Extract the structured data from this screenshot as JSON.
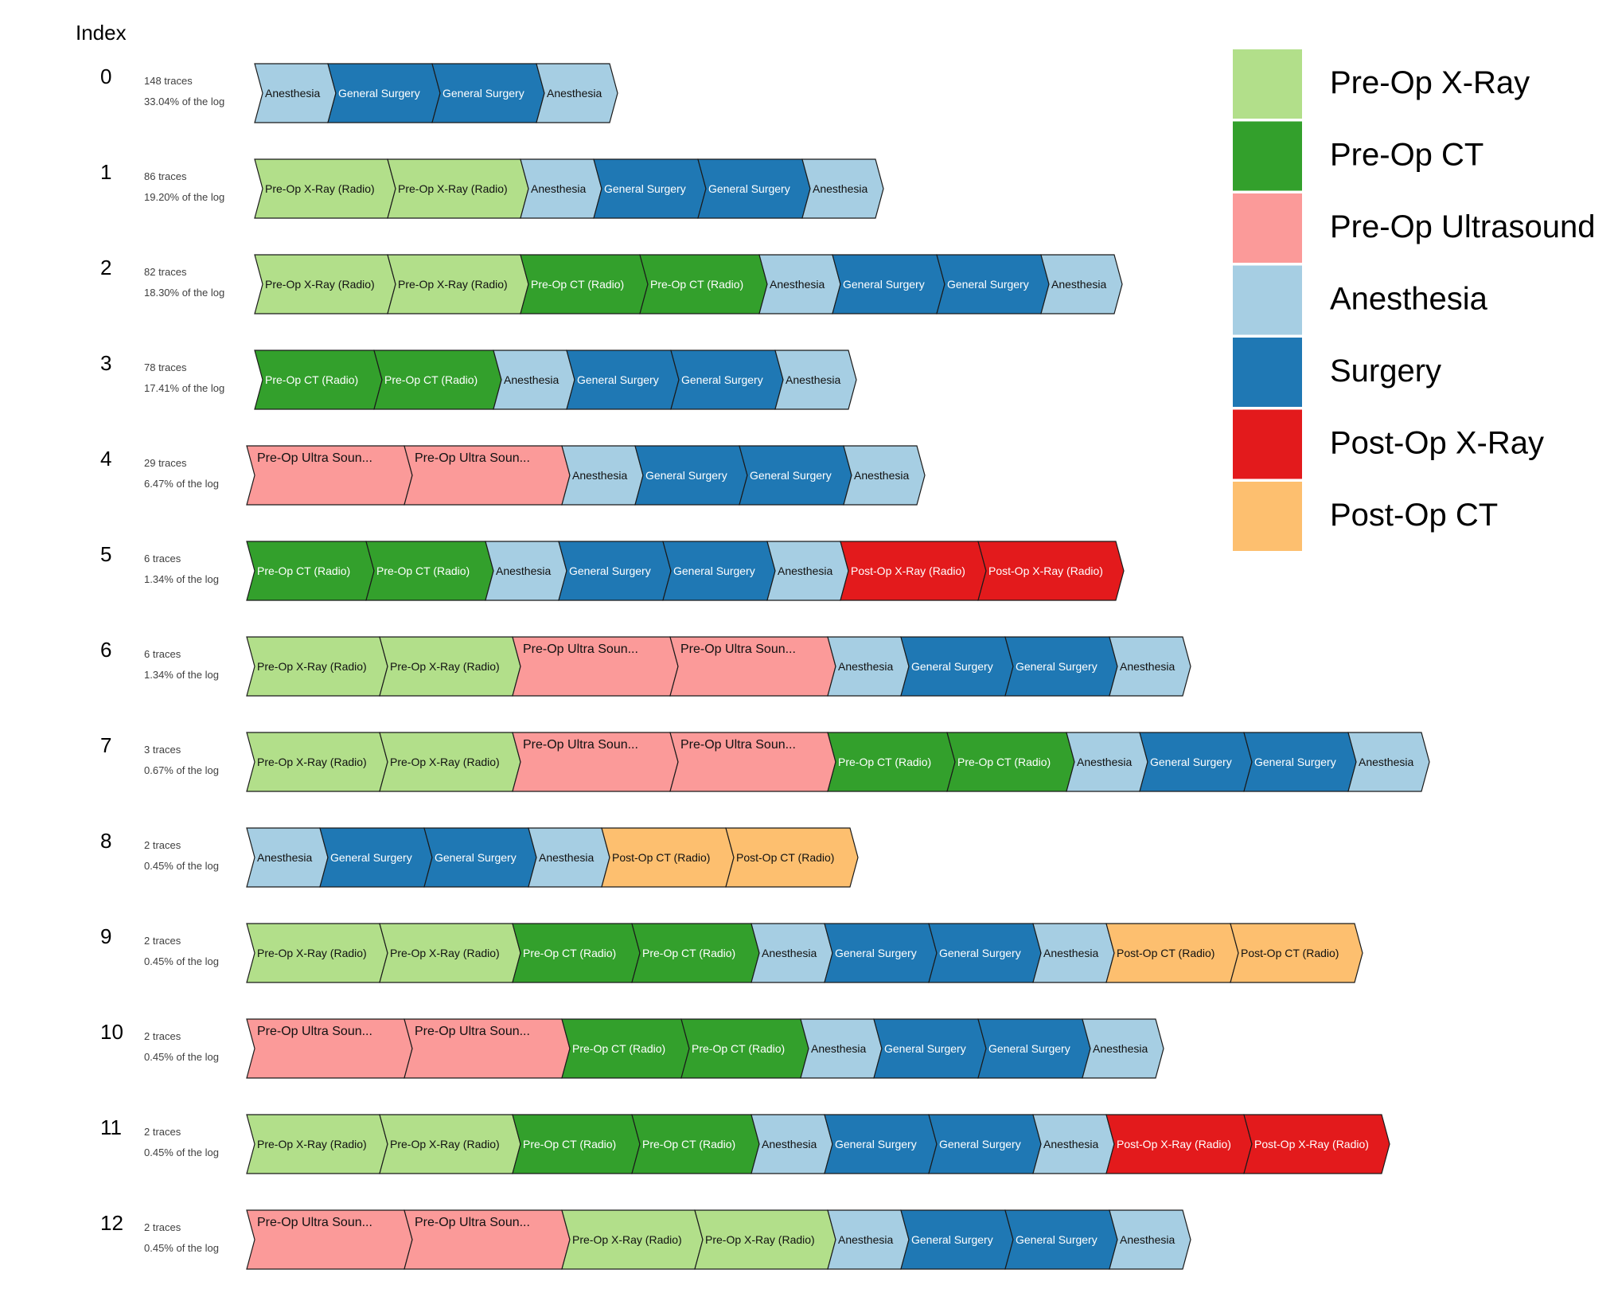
{
  "index_header": "Index",
  "colors": {
    "xray": "#b2df8a",
    "ct": "#33a02c",
    "us": "#fb9a99",
    "anes": "#a6cee3",
    "surg": "#1f78b4",
    "postx": "#e31a1c",
    "postct": "#fdbf6f"
  },
  "legend": [
    {
      "label": "Pre-Op X-Ray",
      "key": "xray"
    },
    {
      "label": "Pre-Op CT",
      "key": "ct"
    },
    {
      "label": "Pre-Op Ultrasound",
      "key": "us"
    },
    {
      "label": "Anesthesia",
      "key": "anes"
    },
    {
      "label": "Surgery",
      "key": "surg"
    },
    {
      "label": "Post-Op X-Ray",
      "key": "postx"
    },
    {
      "label": "Post-Op CT",
      "key": "postct"
    }
  ],
  "activities": {
    "xray": "Pre-Op X-Ray (Radio)",
    "ct": "Pre-Op CT  (Radio)",
    "us": "Pre-Op Ultra Soun...",
    "anes": "Anesthesia",
    "surg": "General Surgery",
    "postx": "Post-Op X-Ray (Radio)",
    "postct": "Post-Op CT  (Radio)"
  },
  "variants": [
    {
      "index": "0",
      "traces": "148 traces",
      "share": "33.04% of the log",
      "steps": [
        "anes",
        "surg",
        "surg",
        "anes"
      ]
    },
    {
      "index": "1",
      "traces": "86 traces",
      "share": "19.20% of the log",
      "steps": [
        "xray",
        "xray",
        "anes",
        "surg",
        "surg",
        "anes"
      ]
    },
    {
      "index": "2",
      "traces": "82 traces",
      "share": "18.30% of the log",
      "steps": [
        "xray",
        "xray",
        "ct",
        "ct",
        "anes",
        "surg",
        "surg",
        "anes"
      ]
    },
    {
      "index": "3",
      "traces": "78 traces",
      "share": "17.41% of the log",
      "steps": [
        "ct",
        "ct",
        "anes",
        "surg",
        "surg",
        "anes"
      ]
    },
    {
      "index": "4",
      "traces": "29 traces",
      "share": "6.47% of the log",
      "steps": [
        "us",
        "us",
        "anes",
        "surg",
        "surg",
        "anes"
      ]
    },
    {
      "index": "5",
      "traces": "6 traces",
      "share": "1.34% of the log",
      "steps": [
        "ct",
        "ct",
        "anes",
        "surg",
        "surg",
        "anes",
        "postx",
        "postx"
      ]
    },
    {
      "index": "6",
      "traces": "6 traces",
      "share": "1.34% of the log",
      "steps": [
        "xray",
        "xray",
        "us",
        "us",
        "anes",
        "surg",
        "surg",
        "anes"
      ]
    },
    {
      "index": "7",
      "traces": "3 traces",
      "share": "0.67% of the log",
      "steps": [
        "xray",
        "xray",
        "us",
        "us",
        "ct",
        "ct",
        "anes",
        "surg",
        "surg",
        "anes"
      ]
    },
    {
      "index": "8",
      "traces": "2 traces",
      "share": "0.45% of the log",
      "steps": [
        "anes",
        "surg",
        "surg",
        "anes",
        "postct",
        "postct"
      ]
    },
    {
      "index": "9",
      "traces": "2 traces",
      "share": "0.45% of the log",
      "steps": [
        "xray",
        "xray",
        "ct",
        "ct",
        "anes",
        "surg",
        "surg",
        "anes",
        "postct",
        "postct"
      ]
    },
    {
      "index": "10",
      "traces": "2 traces",
      "share": "0.45% of the log",
      "steps": [
        "us",
        "us",
        "ct",
        "ct",
        "anes",
        "surg",
        "surg",
        "anes"
      ]
    },
    {
      "index": "11",
      "traces": "2 traces",
      "share": "0.45% of the log",
      "steps": [
        "xray",
        "xray",
        "ct",
        "ct",
        "anes",
        "surg",
        "surg",
        "anes",
        "postx",
        "postx"
      ]
    },
    {
      "index": "12",
      "traces": "2 traces",
      "share": "0.45% of the log",
      "steps": [
        "us",
        "us",
        "xray",
        "xray",
        "anes",
        "surg",
        "surg",
        "anes"
      ]
    }
  ]
}
